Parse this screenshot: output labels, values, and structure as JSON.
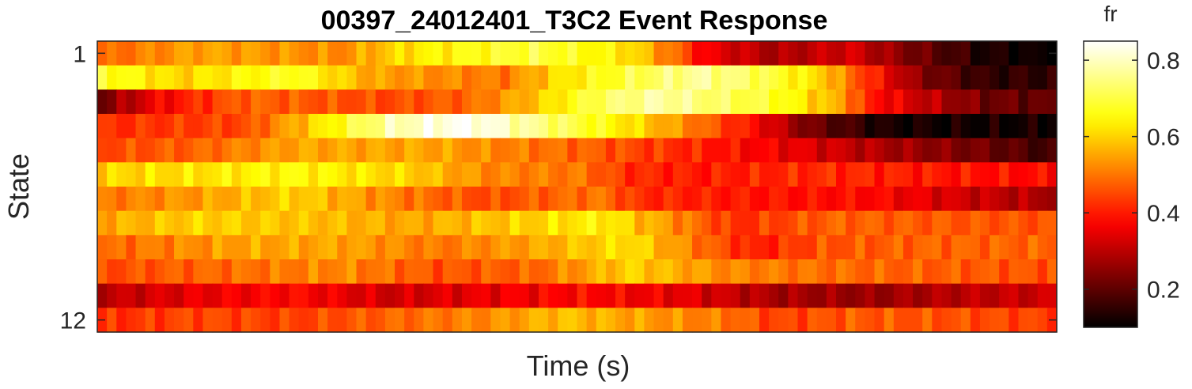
{
  "chart_data": {
    "type": "heatmap",
    "title": "00397_24012401_T3C2 Event Response",
    "xlabel": "Time (s)",
    "ylabel": "State",
    "y_tick_labels": [
      {
        "value": 1,
        "label": "1"
      },
      {
        "value": 12,
        "label": "12"
      }
    ],
    "y_range": [
      1,
      12
    ],
    "rows": 12,
    "columns": 100,
    "colormap": "hot",
    "grid": false,
    "colorbar": {
      "title": "fr",
      "range": [
        0.1,
        0.85
      ],
      "ticks": [
        {
          "value": 0.2,
          "label": "0.2"
        },
        {
          "value": 0.4,
          "label": "0.4"
        },
        {
          "value": 0.6,
          "label": "0.6"
        },
        {
          "value": 0.8,
          "label": "0.8"
        }
      ]
    },
    "row_profiles": [
      [
        [
          0,
          0.48
        ],
        [
          10,
          0.55
        ],
        [
          25,
          0.52
        ],
        [
          32,
          0.62
        ],
        [
          45,
          0.7
        ],
        [
          55,
          0.62
        ],
        [
          60,
          0.48
        ],
        [
          63,
          0.36
        ],
        [
          70,
          0.28
        ],
        [
          78,
          0.33
        ],
        [
          85,
          0.22
        ],
        [
          92,
          0.13
        ],
        [
          99,
          0.1
        ]
      ],
      [
        [
          0,
          0.68
        ],
        [
          8,
          0.6
        ],
        [
          20,
          0.68
        ],
        [
          28,
          0.55
        ],
        [
          42,
          0.5
        ],
        [
          48,
          0.62
        ],
        [
          55,
          0.7
        ],
        [
          62,
          0.77
        ],
        [
          68,
          0.72
        ],
        [
          75,
          0.6
        ],
        [
          80,
          0.42
        ],
        [
          85,
          0.25
        ],
        [
          92,
          0.15
        ],
        [
          99,
          0.15
        ]
      ],
      [
        [
          0,
          0.22
        ],
        [
          5,
          0.35
        ],
        [
          10,
          0.42
        ],
        [
          15,
          0.48
        ],
        [
          30,
          0.45
        ],
        [
          38,
          0.48
        ],
        [
          45,
          0.58
        ],
        [
          52,
          0.72
        ],
        [
          58,
          0.78
        ],
        [
          65,
          0.72
        ],
        [
          70,
          0.68
        ],
        [
          77,
          0.55
        ],
        [
          80,
          0.4
        ],
        [
          85,
          0.32
        ],
        [
          92,
          0.22
        ],
        [
          99,
          0.2
        ]
      ],
      [
        [
          0,
          0.42
        ],
        [
          15,
          0.45
        ],
        [
          22,
          0.6
        ],
        [
          30,
          0.78
        ],
        [
          38,
          0.85
        ],
        [
          45,
          0.76
        ],
        [
          55,
          0.62
        ],
        [
          62,
          0.5
        ],
        [
          68,
          0.38
        ],
        [
          74,
          0.22
        ],
        [
          82,
          0.12
        ],
        [
          99,
          0.12
        ]
      ],
      [
        [
          0,
          0.45
        ],
        [
          10,
          0.48
        ],
        [
          20,
          0.55
        ],
        [
          35,
          0.55
        ],
        [
          40,
          0.52
        ],
        [
          50,
          0.48
        ],
        [
          60,
          0.42
        ],
        [
          72,
          0.35
        ],
        [
          82,
          0.28
        ],
        [
          92,
          0.22
        ],
        [
          99,
          0.16
        ]
      ],
      [
        [
          0,
          0.6
        ],
        [
          10,
          0.62
        ],
        [
          20,
          0.65
        ],
        [
          32,
          0.6
        ],
        [
          40,
          0.52
        ],
        [
          50,
          0.5
        ],
        [
          55,
          0.42
        ],
        [
          62,
          0.4
        ],
        [
          75,
          0.42
        ],
        [
          85,
          0.4
        ],
        [
          99,
          0.38
        ]
      ],
      [
        [
          0,
          0.5
        ],
        [
          10,
          0.54
        ],
        [
          20,
          0.6
        ],
        [
          32,
          0.5
        ],
        [
          40,
          0.45
        ],
        [
          52,
          0.5
        ],
        [
          56,
          0.42
        ],
        [
          65,
          0.4
        ],
        [
          80,
          0.38
        ],
        [
          90,
          0.32
        ],
        [
          99,
          0.28
        ]
      ],
      [
        [
          0,
          0.55
        ],
        [
          10,
          0.6
        ],
        [
          22,
          0.58
        ],
        [
          32,
          0.55
        ],
        [
          45,
          0.6
        ],
        [
          52,
          0.64
        ],
        [
          60,
          0.52
        ],
        [
          66,
          0.42
        ],
        [
          76,
          0.48
        ],
        [
          86,
          0.47
        ],
        [
          99,
          0.46
        ]
      ],
      [
        [
          0,
          0.48
        ],
        [
          15,
          0.55
        ],
        [
          25,
          0.55
        ],
        [
          35,
          0.5
        ],
        [
          45,
          0.55
        ],
        [
          55,
          0.62
        ],
        [
          62,
          0.5
        ],
        [
          68,
          0.4
        ],
        [
          75,
          0.46
        ],
        [
          85,
          0.48
        ],
        [
          99,
          0.48
        ]
      ],
      [
        [
          0,
          0.45
        ],
        [
          10,
          0.48
        ],
        [
          25,
          0.52
        ],
        [
          35,
          0.46
        ],
        [
          45,
          0.48
        ],
        [
          55,
          0.6
        ],
        [
          65,
          0.52
        ],
        [
          72,
          0.5
        ],
        [
          82,
          0.48
        ],
        [
          99,
          0.46
        ]
      ],
      [
        [
          0,
          0.3
        ],
        [
          10,
          0.35
        ],
        [
          20,
          0.38
        ],
        [
          30,
          0.32
        ],
        [
          40,
          0.35
        ],
        [
          50,
          0.38
        ],
        [
          60,
          0.35
        ],
        [
          70,
          0.28
        ],
        [
          80,
          0.26
        ],
        [
          90,
          0.3
        ],
        [
          99,
          0.32
        ]
      ],
      [
        [
          0,
          0.42
        ],
        [
          10,
          0.45
        ],
        [
          20,
          0.44
        ],
        [
          30,
          0.48
        ],
        [
          40,
          0.52
        ],
        [
          48,
          0.58
        ],
        [
          55,
          0.55
        ],
        [
          65,
          0.5
        ],
        [
          70,
          0.44
        ],
        [
          78,
          0.47
        ],
        [
          88,
          0.46
        ],
        [
          99,
          0.44
        ]
      ]
    ]
  }
}
